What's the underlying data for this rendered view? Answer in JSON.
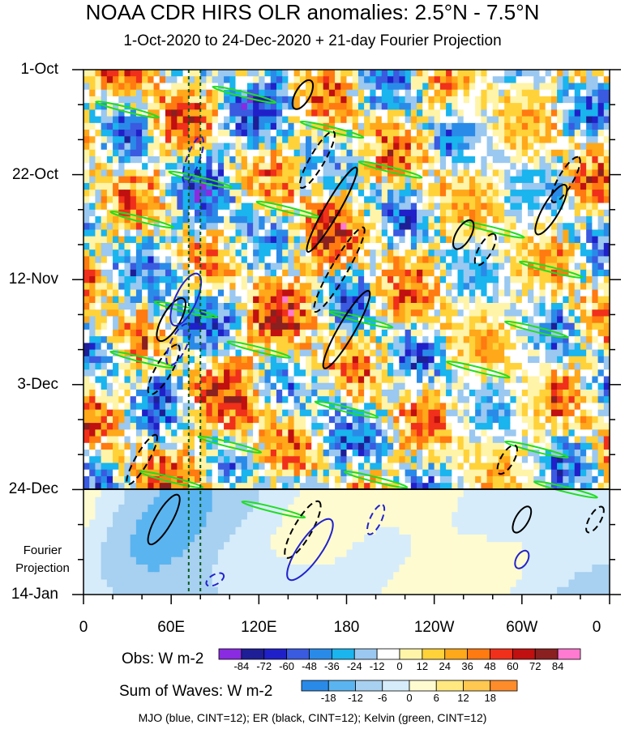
{
  "chart_data": {
    "type": "heatmap",
    "title": "NOAA CDR HIRS OLR anomalies: 2.5°N - 7.5°N",
    "subtitle": "1-Oct-2020 to 24-Dec-2020 + 21-day Fourier Projection",
    "y_tick_labels": [
      "1-Oct",
      "22-Oct",
      "12-Nov",
      "3-Dec",
      "24-Dec",
      "14-Jan"
    ],
    "y_ticks_days": [
      0,
      21,
      42,
      63,
      84,
      105
    ],
    "x_tick_labels": [
      "0",
      "60E",
      "120E",
      "180",
      "120W",
      "60W",
      "0"
    ],
    "x_ticks_lon": [
      0,
      60,
      120,
      180,
      240,
      300,
      360
    ],
    "fourier_projection_label": "Fourier Projection",
    "observation_end_day": 84,
    "reference_longitudes": [
      72,
      80
    ],
    "obs_colorbar": {
      "label": "Obs: W m-2",
      "levels": [
        -84,
        -72,
        -60,
        -48,
        -36,
        -24,
        -12,
        0,
        12,
        24,
        36,
        48,
        60,
        72,
        84
      ],
      "colors": [
        "#8a2be2",
        "#1e1e96",
        "#2020c8",
        "#3a5ae0",
        "#2a8ae8",
        "#1ab4ee",
        "#9ac8f0",
        "#ffffff",
        "#fff4a8",
        "#ffd23a",
        "#ffa81a",
        "#ff7a10",
        "#f0301a",
        "#c01010",
        "#8a2020",
        "#ff7ad0"
      ]
    },
    "waves_colorbar": {
      "label": "Sum of Waves: W m-2",
      "levels": [
        -18,
        -12,
        -6,
        0,
        6,
        12,
        18
      ],
      "colors": [
        "#2a8ae8",
        "#5ab4f0",
        "#a8d0f0",
        "#d6ecfb",
        "#fffbd0",
        "#ffe880",
        "#ffc850",
        "#ff8c2a"
      ]
    },
    "footnote": "MJO (blue, CINT=12); ER (black, CINT=12); Kelvin (green, CINT=12)"
  }
}
